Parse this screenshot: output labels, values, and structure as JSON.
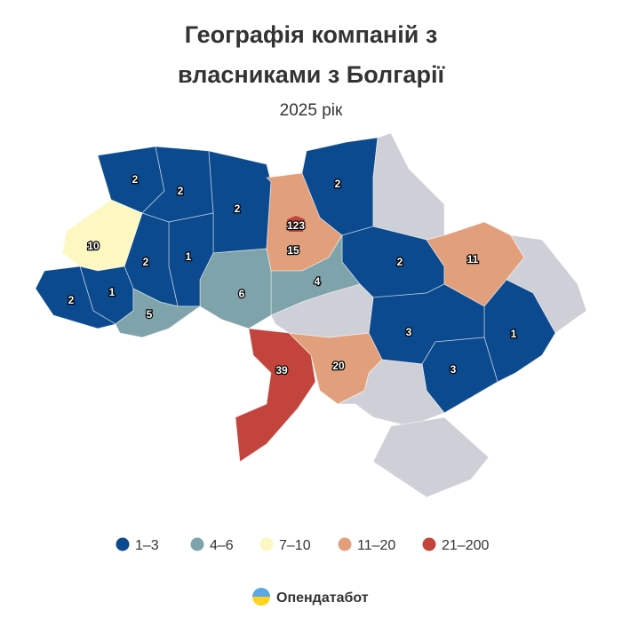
{
  "title_lines": [
    "Географія компаній з",
    "власниками з Болгарії"
  ],
  "subtitle": "2025 рік",
  "regions": [
    {
      "value": 2,
      "color": "#0b4a8e"
    },
    {
      "value": 2,
      "color": "#0b4a8e"
    },
    {
      "value": 2,
      "color": "#0b4a8e"
    },
    {
      "value": 15,
      "color": "#e29f7b"
    },
    {
      "value": 123,
      "color": "#c3443c"
    },
    {
      "value": 2,
      "color": "#0b4a8e"
    },
    {
      "value": null,
      "color": "#cfcfd7"
    },
    {
      "value": 2,
      "color": "#0b4a8e"
    },
    {
      "value": 11,
      "color": "#e29f7b"
    },
    {
      "value": null,
      "color": "#cfcfd7"
    },
    {
      "value": 1,
      "color": "#0b4a8e"
    },
    {
      "value": 3,
      "color": "#0b4a8e"
    },
    {
      "value": 3,
      "color": "#0b4a8e"
    },
    {
      "value": null,
      "color": "#cfcfd7"
    },
    {
      "value": null,
      "color": "#cfcfd7"
    },
    {
      "value": 20,
      "color": "#e29f7b"
    },
    {
      "value": 39,
      "color": "#c3443c"
    },
    {
      "value": null,
      "color": "#cfcfd7"
    },
    {
      "value": 4,
      "color": "#7fa3aa"
    },
    {
      "value": 6,
      "color": "#7fa3aa"
    },
    {
      "value": 1,
      "color": "#0b4a8e"
    },
    {
      "value": 2,
      "color": "#0b4a8e"
    },
    {
      "value": 10,
      "color": "#fdf8c2"
    },
    {
      "value": 1,
      "color": "#0b4a8e"
    },
    {
      "value": 2,
      "color": "#0b4a8e"
    },
    {
      "value": 5,
      "color": "#7fa3aa"
    }
  ],
  "legend": [
    {
      "label": "1–3",
      "color": "#0b4a8e"
    },
    {
      "label": "4–6",
      "color": "#7fa3aa"
    },
    {
      "label": "7–10",
      "color": "#fdf8c2"
    },
    {
      "label": "11–20",
      "color": "#e29f7b"
    },
    {
      "label": "21–200",
      "color": "#c3443c"
    }
  ],
  "footer": "Опендатабот"
}
